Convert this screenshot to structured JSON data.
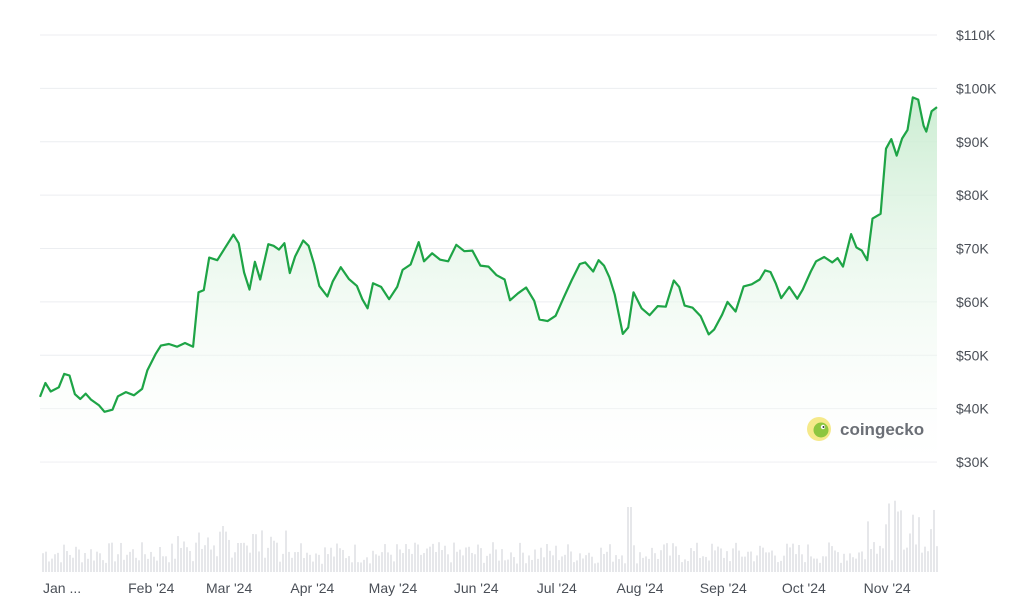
{
  "chart_data": {
    "type": "area",
    "title": "",
    "xlabel": "",
    "ylabel": "",
    "y_axis_position": "right",
    "ylim": [
      30000,
      110000
    ],
    "y_ticks": [
      {
        "value": 30000,
        "label": "$30K"
      },
      {
        "value": 40000,
        "label": "$40K"
      },
      {
        "value": 50000,
        "label": "$50K"
      },
      {
        "value": 60000,
        "label": "$60K"
      },
      {
        "value": 70000,
        "label": "$70K"
      },
      {
        "value": 80000,
        "label": "$80K"
      },
      {
        "value": 90000,
        "label": "$90K"
      },
      {
        "value": 100000,
        "label": "$100K"
      },
      {
        "value": 110000,
        "label": "$110K"
      }
    ],
    "x_ticks": [
      {
        "date": "2024-01-01",
        "label": "Jan ..."
      },
      {
        "date": "2024-02-01",
        "label": "Feb '24"
      },
      {
        "date": "2024-03-01",
        "label": "Mar '24"
      },
      {
        "date": "2024-04-01",
        "label": "Apr '24"
      },
      {
        "date": "2024-05-01",
        "label": "May '24"
      },
      {
        "date": "2024-06-01",
        "label": "Jun '24"
      },
      {
        "date": "2024-07-01",
        "label": "Jul '24"
      },
      {
        "date": "2024-08-01",
        "label": "Aug '24"
      },
      {
        "date": "2024-09-01",
        "label": "Sep '24"
      },
      {
        "date": "2024-10-01",
        "label": "Oct '24"
      },
      {
        "date": "2024-11-01",
        "label": "Nov '24"
      }
    ],
    "grid": true,
    "series": [
      {
        "color": "#1ea446",
        "fill_color": "#e8f6ea",
        "points": [
          [
            "2024-01-01",
            42200
          ],
          [
            "2024-01-03",
            44800
          ],
          [
            "2024-01-05",
            43200
          ],
          [
            "2024-01-08",
            44000
          ],
          [
            "2024-01-10",
            46500
          ],
          [
            "2024-01-12",
            46200
          ],
          [
            "2024-01-14",
            42700
          ],
          [
            "2024-01-16",
            41800
          ],
          [
            "2024-01-18",
            42800
          ],
          [
            "2024-01-20",
            41700
          ],
          [
            "2024-01-23",
            40600
          ],
          [
            "2024-01-25",
            39400
          ],
          [
            "2024-01-28",
            39800
          ],
          [
            "2024-01-30",
            42300
          ],
          [
            "2024-02-02",
            43100
          ],
          [
            "2024-02-05",
            42500
          ],
          [
            "2024-02-08",
            43700
          ],
          [
            "2024-02-10",
            47200
          ],
          [
            "2024-02-13",
            50200
          ],
          [
            "2024-02-15",
            51800
          ],
          [
            "2024-02-18",
            52100
          ],
          [
            "2024-02-21",
            51600
          ],
          [
            "2024-02-24",
            52300
          ],
          [
            "2024-02-27",
            51600
          ],
          [
            "2024-02-29",
            61800
          ],
          [
            "2024-03-02",
            62200
          ],
          [
            "2024-03-04",
            68300
          ],
          [
            "2024-03-07",
            67800
          ],
          [
            "2024-03-10",
            70200
          ],
          [
            "2024-03-13",
            72600
          ],
          [
            "2024-03-15",
            71000
          ],
          [
            "2024-03-17",
            65500
          ],
          [
            "2024-03-19",
            62300
          ],
          [
            "2024-03-21",
            67500
          ],
          [
            "2024-03-23",
            64200
          ],
          [
            "2024-03-26",
            70800
          ],
          [
            "2024-03-28",
            70500
          ],
          [
            "2024-03-30",
            69800
          ],
          [
            "2024-04-01",
            71000
          ],
          [
            "2024-04-03",
            65400
          ],
          [
            "2024-04-05",
            68500
          ],
          [
            "2024-04-08",
            71500
          ],
          [
            "2024-04-10",
            70500
          ],
          [
            "2024-04-12",
            67200
          ],
          [
            "2024-04-14",
            63000
          ],
          [
            "2024-04-17",
            61000
          ],
          [
            "2024-04-19",
            63800
          ],
          [
            "2024-04-22",
            66500
          ],
          [
            "2024-04-25",
            64300
          ],
          [
            "2024-04-28",
            63000
          ],
          [
            "2024-04-30",
            60500
          ],
          [
            "2024-05-02",
            58800
          ],
          [
            "2024-05-04",
            63500
          ],
          [
            "2024-05-07",
            62800
          ],
          [
            "2024-05-10",
            60500
          ],
          [
            "2024-05-13",
            62800
          ],
          [
            "2024-05-15",
            66000
          ],
          [
            "2024-05-18",
            67000
          ],
          [
            "2024-05-21",
            71200
          ],
          [
            "2024-05-23",
            67600
          ],
          [
            "2024-05-26",
            69100
          ],
          [
            "2024-05-29",
            67900
          ],
          [
            "2024-06-01",
            67600
          ],
          [
            "2024-06-04",
            70700
          ],
          [
            "2024-06-07",
            69500
          ],
          [
            "2024-06-10",
            69600
          ],
          [
            "2024-06-13",
            66800
          ],
          [
            "2024-06-16",
            66600
          ],
          [
            "2024-06-19",
            65000
          ],
          [
            "2024-06-22",
            64200
          ],
          [
            "2024-06-24",
            60300
          ],
          [
            "2024-06-27",
            61600
          ],
          [
            "2024-06-30",
            62700
          ],
          [
            "2024-07-03",
            60200
          ],
          [
            "2024-07-05",
            56700
          ],
          [
            "2024-07-08",
            56400
          ],
          [
            "2024-07-11",
            57400
          ],
          [
            "2024-07-14",
            60800
          ],
          [
            "2024-07-17",
            64100
          ],
          [
            "2024-07-20",
            67100
          ],
          [
            "2024-07-22",
            67400
          ],
          [
            "2024-07-25",
            65700
          ],
          [
            "2024-07-27",
            67800
          ],
          [
            "2024-07-29",
            66800
          ],
          [
            "2024-07-31",
            64600
          ],
          [
            "2024-08-02",
            61400
          ],
          [
            "2024-08-05",
            54000
          ],
          [
            "2024-08-07",
            55200
          ],
          [
            "2024-08-09",
            61800
          ],
          [
            "2024-08-12",
            58800
          ],
          [
            "2024-08-15",
            57500
          ],
          [
            "2024-08-18",
            59200
          ],
          [
            "2024-08-21",
            59100
          ],
          [
            "2024-08-24",
            64000
          ],
          [
            "2024-08-26",
            62800
          ],
          [
            "2024-08-28",
            59300
          ],
          [
            "2024-08-31",
            58900
          ],
          [
            "2024-09-03",
            57300
          ],
          [
            "2024-09-06",
            53900
          ],
          [
            "2024-09-08",
            54800
          ],
          [
            "2024-09-11",
            57600
          ],
          [
            "2024-09-13",
            60000
          ],
          [
            "2024-09-16",
            58200
          ],
          [
            "2024-09-19",
            62900
          ],
          [
            "2024-09-22",
            63300
          ],
          [
            "2024-09-25",
            64200
          ],
          [
            "2024-09-27",
            65900
          ],
          [
            "2024-09-29",
            65600
          ],
          [
            "2024-10-01",
            63400
          ],
          [
            "2024-10-03",
            60700
          ],
          [
            "2024-10-06",
            62800
          ],
          [
            "2024-10-09",
            60600
          ],
          [
            "2024-10-11",
            62300
          ],
          [
            "2024-10-14",
            65700
          ],
          [
            "2024-10-16",
            67600
          ],
          [
            "2024-10-19",
            68400
          ],
          [
            "2024-10-22",
            67400
          ],
          [
            "2024-10-24",
            68200
          ],
          [
            "2024-10-26",
            66600
          ],
          [
            "2024-10-29",
            72700
          ],
          [
            "2024-10-31",
            70200
          ],
          [
            "2024-11-02",
            69600
          ],
          [
            "2024-11-04",
            67800
          ],
          [
            "2024-11-06",
            75600
          ],
          [
            "2024-11-09",
            76500
          ],
          [
            "2024-11-11",
            88700
          ],
          [
            "2024-11-13",
            90500
          ],
          [
            "2024-11-15",
            87400
          ],
          [
            "2024-11-17",
            90600
          ],
          [
            "2024-11-19",
            92200
          ],
          [
            "2024-11-21",
            98300
          ],
          [
            "2024-11-23",
            97900
          ],
          [
            "2024-11-25",
            93000
          ],
          [
            "2024-11-26",
            91900
          ],
          [
            "2024-11-28",
            95700
          ],
          [
            "2024-11-30",
            96500
          ]
        ]
      }
    ],
    "volume_bars": "relative trading volume shown as faint grey bars along the bottom"
  },
  "watermark": {
    "text": "coingecko"
  }
}
